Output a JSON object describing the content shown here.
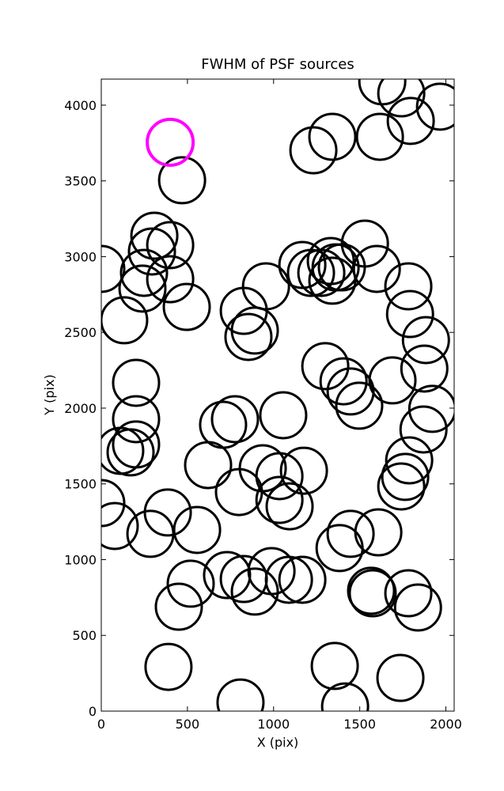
{
  "chart_data": {
    "type": "scatter",
    "title": "FWHM of PSF sources",
    "x_label": "X (pix)",
    "y_label": "Y (pix)",
    "xlim": [
      0,
      2048
    ],
    "ylim": [
      0,
      4172
    ],
    "xticks": [
      0,
      500,
      1000,
      1500,
      2000
    ],
    "yticks": [
      0,
      500,
      1000,
      1500,
      2000,
      2500,
      3000,
      3500,
      4000
    ],
    "color": "#000000",
    "x": [
      469,
      308,
      400,
      294,
      248,
      400,
      239,
      0,
      496,
      133,
      827,
      956,
      891,
      854,
      202,
      202,
      202,
      170,
      110,
      707,
      776,
      1056,
      620,
      937,
      1034,
      1176,
      799,
      1034,
      1093,
      0,
      78,
      386,
      285,
      556,
      1383,
      1447,
      1608,
      730,
      827,
      891,
      988,
      1089,
      1167,
      519,
      450,
      1566,
      1575,
      1782,
      1838,
      390,
      1355,
      1736,
      808,
      1415,
      1231,
      1341,
      1617,
      1631,
      1741,
      1796,
      1966,
      1530,
      1599,
      1167,
      1217,
      1277,
      1332,
      1360,
      1396,
      1341,
      1782,
      1792,
      1884,
      1875,
      1921,
      1870,
      1787,
      1764,
      1741,
      1300,
      1406,
      1447,
      1497,
      1690
    ],
    "y": [
      3504,
      3138,
      3076,
      3034,
      2893,
      2851,
      2789,
      2919,
      2668,
      2580,
      2642,
      2804,
      2512,
      2470,
      2167,
      1927,
      1760,
      1708,
      1718,
      1890,
      1927,
      1953,
      1624,
      1603,
      1551,
      1587,
      1446,
      1394,
      1352,
      1373,
      1222,
      1311,
      1170,
      1196,
      1076,
      1170,
      1180,
      898,
      872,
      789,
      924,
      867,
      867,
      841,
      689,
      794,
      778,
      778,
      684,
      292,
      298,
      219,
      57,
      31,
      3702,
      3791,
      3791,
      4157,
      4078,
      3896,
      3990,
      3086,
      2919,
      2945,
      2893,
      2893,
      2971,
      2929,
      2929,
      2841,
      2804,
      2621,
      2449,
      2261,
      1995,
      1859,
      1655,
      1546,
      1483,
      2277,
      2177,
      2110,
      2016,
      2183
    ],
    "highlight": {
      "x": [
        400
      ],
      "y": [
        3755
      ],
      "color": "#ff00ff"
    }
  }
}
